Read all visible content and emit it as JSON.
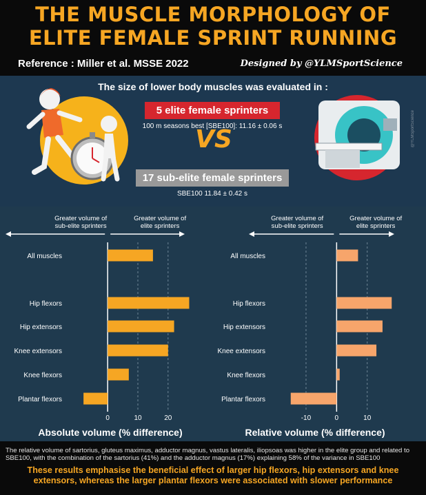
{
  "header": {
    "title_line1": "THE MUSCLE MORPHOLOGY OF",
    "title_line2": "ELITE FEMALE SPRINT RUNNING",
    "reference": "Reference : Miller et al. MSSE 2022",
    "designed_by": "Designed by @YLMSportScience"
  },
  "study": {
    "evaluated": "The size of lower body muscles was evaluated in :",
    "elite_label": "5 elite female sprinters",
    "elite_detail": "100 m seasons best [SBE100]: 11.16 ± 0.06 s",
    "vs": "VS",
    "subelite_label": "17 sub-elite female sprinters",
    "subelite_detail": "SBE100 11.84 ± 0.42 s",
    "watermark": "@YLMSportScience"
  },
  "colors": {
    "accent": "#f6a623",
    "elite_red": "#d6262e",
    "panel_bg": "#1f3a4e",
    "bar_absolute": "#f6a623",
    "bar_relative": "#f7a56b"
  },
  "chart_data": [
    {
      "type": "bar",
      "orientation": "horizontal",
      "xlabel": "Absolute volume (% difference)",
      "left_note": "Greater volume of sub-elite sprinters",
      "right_note": "Greater volume of elite sprinters",
      "categories": [
        "All muscles",
        "Hip flexors",
        "Hip extensors",
        "Knee extensors",
        "Knee flexors",
        "Plantar flexors"
      ],
      "values": [
        15,
        27,
        22,
        20,
        7,
        -8
      ],
      "xticks": [
        0,
        10,
        20
      ],
      "xlim": [
        -11,
        31
      ],
      "grid": "vertical dashed"
    },
    {
      "type": "bar",
      "orientation": "horizontal",
      "xlabel": "Relative volume (% difference)",
      "left_note": "Greater volume of sub-elite sprinters",
      "right_note": "Greater volume of elite sprinters",
      "categories": [
        "All muscles",
        "Hip flexors",
        "Hip extensors",
        "Knee extensors",
        "Knee flexors",
        "Plantar flexors"
      ],
      "values": [
        7,
        18,
        15,
        13,
        1,
        -15
      ],
      "xticks": [
        -10,
        0,
        10
      ],
      "xlim": [
        -19,
        22
      ],
      "grid": "vertical dashed"
    }
  ],
  "footer": {
    "body": "The relative volume of sartorius, gluteus maximus, adductor magnus, vastus lateralis, iliopsoas was higher in the elite group and related to SBE100, with the combination of the sartorius (41%) and the adductor magnus (17%) explaining 58% of the variance in SBE100",
    "conclusion": "These results emphasise the beneficial effect of larger hip flexors, hip extensors and knee extensors, whereas the larger plantar flexors were associated with slower performance"
  }
}
